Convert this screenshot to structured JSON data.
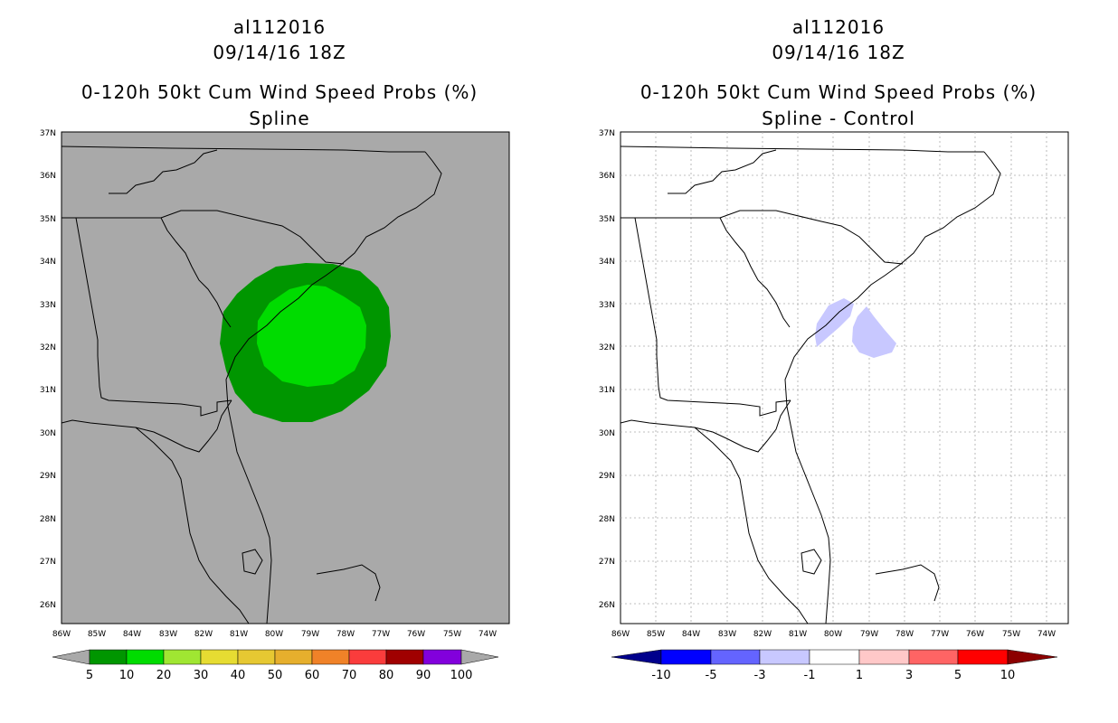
{
  "chart_data": [
    {
      "type": "map",
      "title_lines": [
        "al112016",
        "09/14/16 18Z",
        "0-120h 50kt Cum Wind Speed Probs (%)",
        "Spline"
      ],
      "background": "#a9a9a9",
      "lon_ticks": [
        "86W",
        "85W",
        "84W",
        "83W",
        "82W",
        "81W",
        "80W",
        "79W",
        "78W",
        "77W",
        "76W",
        "75W",
        "74W"
      ],
      "lat_ticks": [
        "37N",
        "36N",
        "35N",
        "34N",
        "33N",
        "32N",
        "31N",
        "30N",
        "29N",
        "28N",
        "27N",
        "26N"
      ],
      "lon_range": [
        -86,
        -73.4
      ],
      "lat_range": [
        25.55,
        37
      ],
      "grid": false,
      "probability_contours": [
        {
          "level": "5-10",
          "color": "#009600",
          "center_lon": -79.0,
          "center_lat": 32.3,
          "description": "outer region"
        },
        {
          "level": "10-20",
          "color": "#00dc00",
          "center_lon": -79.0,
          "center_lat": 32.1,
          "description": "inner region"
        }
      ],
      "colorbar": {
        "labels": [
          "5",
          "10",
          "20",
          "30",
          "40",
          "50",
          "60",
          "70",
          "80",
          "90",
          "100"
        ],
        "colors": [
          "#009600",
          "#00dc00",
          "#a0e632",
          "#e6dc32",
          "#e6c832",
          "#e6af2d",
          "#f08228",
          "#fa3c3c",
          "#a00000",
          "#8200dc"
        ]
      }
    },
    {
      "type": "map",
      "title_lines": [
        "al112016",
        "09/14/16 18Z",
        "0-120h 50kt Cum Wind Speed Probs (%)",
        "Spline - Control"
      ],
      "background": "#ffffff",
      "lon_ticks": [
        "86W",
        "85W",
        "84W",
        "83W",
        "82W",
        "81W",
        "80W",
        "79W",
        "78W",
        "77W",
        "76W",
        "75W",
        "74W"
      ],
      "lat_ticks": [
        "37N",
        "36N",
        "35N",
        "34N",
        "33N",
        "32N",
        "31N",
        "30N",
        "29N",
        "28N",
        "27N",
        "26N"
      ],
      "lon_range": [
        -86,
        -73.4
      ],
      "lat_range": [
        25.55,
        37
      ],
      "grid": true,
      "difference_contours": [
        {
          "level": "-3 to -1",
          "color": "#c8c8ff",
          "center_lon": -80.3,
          "center_lat": 32.5
        },
        {
          "level": "-3 to -1",
          "color": "#c8c8ff",
          "center_lon": -78.8,
          "center_lat": 32.3
        }
      ],
      "colorbar": {
        "labels": [
          "-10",
          "-5",
          "-3",
          "-1",
          "1",
          "3",
          "5",
          "10"
        ],
        "colors": [
          "#00008c",
          "#0000ff",
          "#6464ff",
          "#c8c8ff",
          "#ffffff",
          "#ffc8c8",
          "#ff6464",
          "#ff0000",
          "#8c0000"
        ]
      }
    }
  ]
}
